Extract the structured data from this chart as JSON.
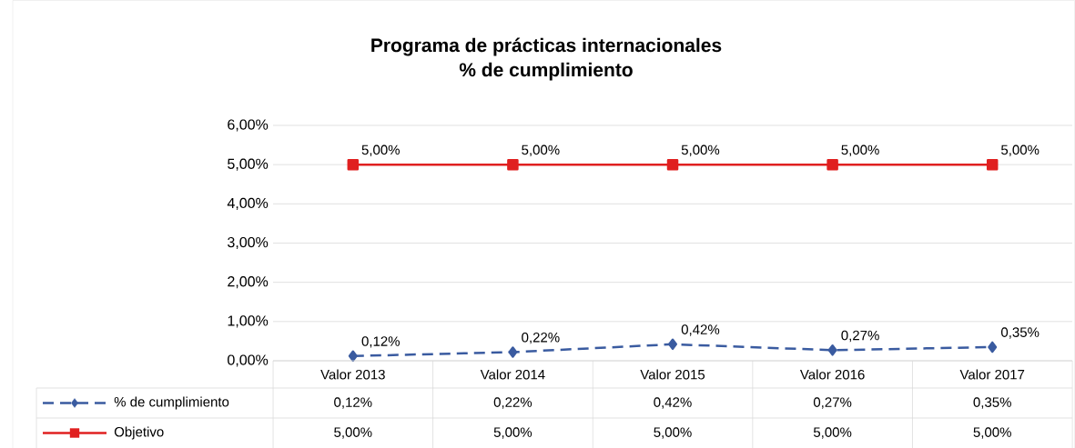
{
  "chart_data": {
    "type": "line",
    "title": "Programa de prácticas internacionales",
    "subtitle": "% de cumplimiento",
    "categories": [
      "Valor 2013",
      "Valor 2014",
      "Valor 2015",
      "Valor 2016",
      "Valor 2017"
    ],
    "series": [
      {
        "name": "% de cumplimiento",
        "color": "#3a5ba0",
        "marker": "diamond",
        "line_style": "dashed",
        "values": [
          0.12,
          0.22,
          0.42,
          0.27,
          0.35
        ],
        "value_labels": [
          "0,12%",
          "0,22%",
          "0,42%",
          "0,27%",
          "0,35%"
        ]
      },
      {
        "name": "Objetivo",
        "color": "#e02020",
        "marker": "square",
        "line_style": "solid",
        "values": [
          5,
          5,
          5,
          5,
          5
        ],
        "value_labels": [
          "5,00%",
          "5,00%",
          "5,00%",
          "5,00%",
          "5,00%"
        ]
      }
    ],
    "ylim": [
      0,
      6
    ],
    "yticks": [
      {
        "value": 0,
        "label": "0,00%"
      },
      {
        "value": 1,
        "label": "1,00%"
      },
      {
        "value": 2,
        "label": "2,00%"
      },
      {
        "value": 3,
        "label": "3,00%"
      },
      {
        "value": 4,
        "label": "4,00%"
      },
      {
        "value": 5,
        "label": "5,00%"
      },
      {
        "value": 6,
        "label": "6,00%"
      }
    ],
    "grid": "y",
    "legend": "bottom"
  }
}
